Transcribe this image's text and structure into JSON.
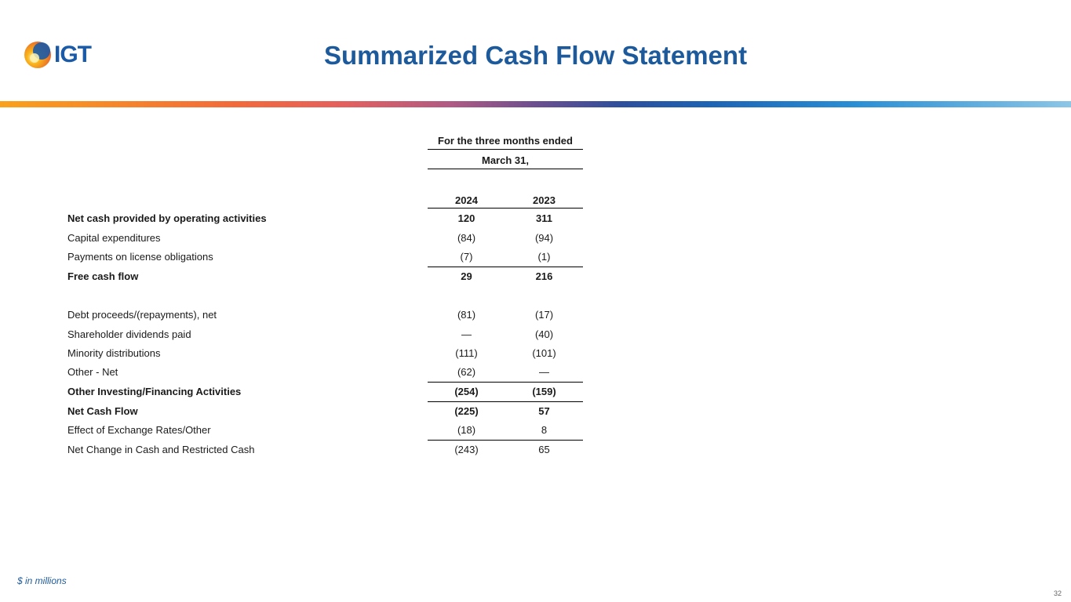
{
  "logo": {
    "text": "IGT",
    "icon": "igt-sunburst-logo-icon",
    "colors": [
      "#f9a11b",
      "#f26a3a",
      "#1b5aa6"
    ]
  },
  "title": "Summarized Cash Flow Statement",
  "accent_color": "#1d5a9c",
  "table": {
    "header_line1": "For the three months ended",
    "header_line2": "March 31,",
    "year1": "2024",
    "year2": "2023",
    "rows": [
      {
        "label": "Net cash provided by operating activities",
        "v2024": "120",
        "v2023": "311",
        "bold": true
      },
      {
        "label": "Capital expenditures",
        "v2024": "(84)",
        "v2023": "(94)"
      },
      {
        "label": "Payments on license obligations",
        "v2024": "(7)",
        "v2023": "(1)"
      },
      {
        "label": "Free cash flow",
        "v2024": "29",
        "v2023": "216",
        "bold": true
      },
      {
        "label": "Debt proceeds/(repayments), net",
        "v2024": "(81)",
        "v2023": "(17)"
      },
      {
        "label": "Shareholder dividends paid",
        "v2024": "—",
        "v2023": "(40)"
      },
      {
        "label": "Minority distributions",
        "v2024": "(111)",
        "v2023": "(101)"
      },
      {
        "label": "Other - Net",
        "v2024": "(62)",
        "v2023": "—"
      },
      {
        "label": "Other Investing/Financing Activities",
        "v2024": "(254)",
        "v2023": "(159)",
        "bold": true
      },
      {
        "label": "Net Cash Flow",
        "v2024": "(225)",
        "v2023": "57",
        "bold": true
      },
      {
        "label": "Effect of Exchange Rates/Other",
        "v2024": "(18)",
        "v2023": "8"
      },
      {
        "label": "Net Change in Cash and Restricted Cash",
        "v2024": "(243)",
        "v2023": "65"
      }
    ]
  },
  "footnote": "$ in millions",
  "page_number": "32"
}
